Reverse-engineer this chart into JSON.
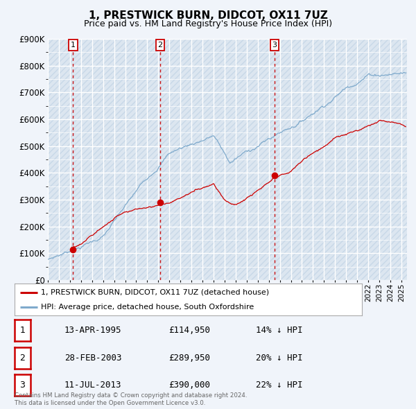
{
  "title": "1, PRESTWICK BURN, DIDCOT, OX11 7UZ",
  "subtitle": "Price paid vs. HM Land Registry's House Price Index (HPI)",
  "ylim": [
    0,
    900000
  ],
  "yticks": [
    0,
    100000,
    200000,
    300000,
    400000,
    500000,
    600000,
    700000,
    800000,
    900000
  ],
  "ytick_labels": [
    "£0",
    "£100K",
    "£200K",
    "£300K",
    "£400K",
    "£500K",
    "£600K",
    "£700K",
    "£800K",
    "£900K"
  ],
  "xlim_start": 1993.0,
  "xlim_end": 2025.5,
  "background_color": "#f0f4fa",
  "plot_bg_color": "#dce6f0",
  "grid_color": "#ffffff",
  "hatch_color": "#c8d8e8",
  "red_line_color": "#cc0000",
  "blue_line_color": "#7faacc",
  "marker_color": "#cc0000",
  "dashed_line_color": "#cc0000",
  "legend_label_red": "1, PRESTWICK BURN, DIDCOT, OX11 7UZ (detached house)",
  "legend_label_blue": "HPI: Average price, detached house, South Oxfordshire",
  "sale_dates": [
    1995.28,
    2003.16,
    2013.53
  ],
  "sale_prices": [
    114950,
    289950,
    390000
  ],
  "sale_labels": [
    "1",
    "2",
    "3"
  ],
  "sale_info": [
    {
      "label": "1",
      "date": "13-APR-1995",
      "price": "£114,950",
      "hpi": "14% ↓ HPI"
    },
    {
      "label": "2",
      "date": "28-FEB-2003",
      "price": "£289,950",
      "hpi": "20% ↓ HPI"
    },
    {
      "label": "3",
      "date": "11-JUL-2013",
      "price": "£390,000",
      "hpi": "22% ↓ HPI"
    }
  ],
  "footnote": "Contains HM Land Registry data © Crown copyright and database right 2024.\nThis data is licensed under the Open Government Licence v3.0."
}
